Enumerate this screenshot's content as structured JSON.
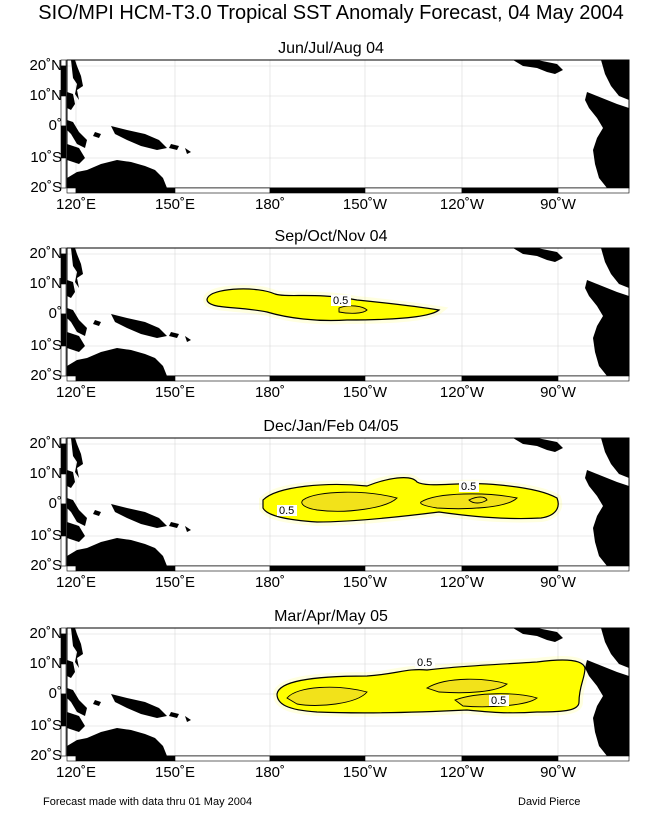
{
  "title": "SIO/MPI HCM-T3.0 Tropical SST Anomaly Forecast, 04 May 2004",
  "lat_labels": [
    "20˚N",
    "10˚N",
    "0˚",
    "10˚S",
    "20˚S"
  ],
  "lon_labels": [
    "120˚E",
    "150˚E",
    "180˚",
    "150˚W",
    "120˚W",
    "90˚W"
  ],
  "panels": [
    {
      "season": "Jun/Jul/Aug 04",
      "contour_labels": []
    },
    {
      "season": "Sep/Oct/Nov 04",
      "contour_labels": [
        "0.5"
      ]
    },
    {
      "season": "Dec/Jan/Feb 04/05",
      "contour_labels": [
        "0.5",
        "0.5"
      ]
    },
    {
      "season": "Mar/Apr/May 05",
      "contour_labels": [
        "0.5",
        "0.5"
      ]
    }
  ],
  "footer": {
    "left": "Forecast made with data thru 01 May 2004",
    "right": "David Pierce"
  },
  "colors": {
    "anomaly_fill": "#ffff00",
    "anomaly_core": "#f2e21a",
    "land": "#000000",
    "background": "#ffffff"
  }
}
